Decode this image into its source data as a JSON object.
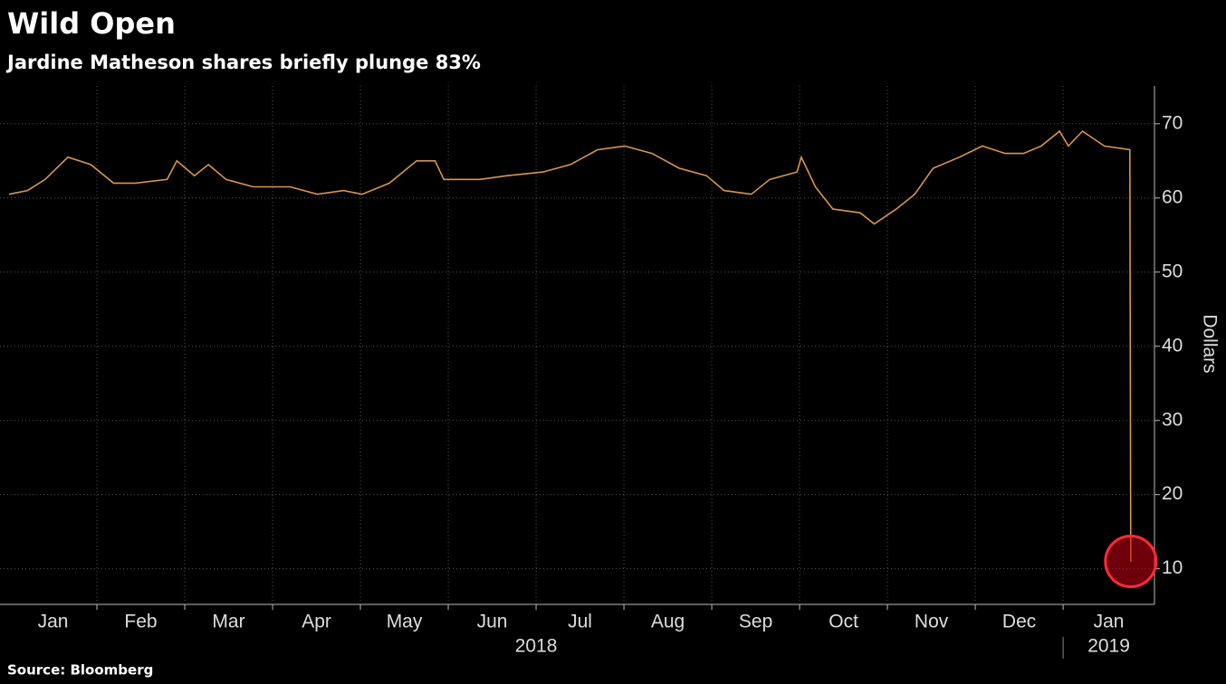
{
  "chart_data": {
    "type": "line",
    "title": "Wild Open",
    "subtitle": "Jardine Matheson shares briefly plunge 83%",
    "source": "Source: Bloomberg",
    "ylabel": "Dollars",
    "x": [
      0,
      0.21,
      0.41,
      0.67,
      0.93,
      1.19,
      1.44,
      1.8,
      1.91,
      2.11,
      2.27,
      2.47,
      2.78,
      3.2,
      3.51,
      3.81,
      4.02,
      4.33,
      4.64,
      4.85,
      4.95,
      5.36,
      5.67,
      6.08,
      6.39,
      6.7,
      7.01,
      7.32,
      7.63,
      7.94,
      8.14,
      8.45,
      8.66,
      8.97,
      9.02,
      9.18,
      9.38,
      9.69,
      9.85,
      10.1,
      10.31,
      10.52,
      10.82,
      11.08,
      11.34,
      11.55,
      11.75,
      11.96,
      12.06,
      12.22,
      12.47,
      12.76,
      12.77
    ],
    "series": [
      {
        "name": "Jardine Matheson",
        "color": "#d9964b",
        "values": [
          60.5,
          61,
          62.5,
          65.5,
          64.5,
          62,
          62,
          62.5,
          65,
          63,
          64.5,
          62.5,
          61.5,
          61.5,
          60.5,
          61,
          60.5,
          62,
          65,
          65,
          62.5,
          62.5,
          63,
          63.5,
          64.5,
          66.5,
          67,
          66,
          64,
          63,
          61,
          60.5,
          62.5,
          63.5,
          65.5,
          61.5,
          58.5,
          58,
          56.5,
          58.5,
          60.5,
          64,
          65.5,
          67,
          66,
          66,
          67,
          69,
          67,
          69,
          67,
          66.5,
          11
        ]
      }
    ],
    "xlim": [
      0,
      13.04
    ],
    "xticks": [
      {
        "value": 0,
        "label": "Jan"
      },
      {
        "value": 1,
        "label": "Feb"
      },
      {
        "value": 2,
        "label": "Mar"
      },
      {
        "value": 3,
        "label": "Apr"
      },
      {
        "value": 4,
        "label": "May"
      },
      {
        "value": 5,
        "label": "Jun"
      },
      {
        "value": 6,
        "label": "Jul"
      },
      {
        "value": 7,
        "label": "Aug"
      },
      {
        "value": 8,
        "label": "Sep"
      },
      {
        "value": 9,
        "label": "Oct"
      },
      {
        "value": 10,
        "label": "Nov"
      },
      {
        "value": 11,
        "label": "Dec"
      },
      {
        "value": 12,
        "label": "Jan"
      }
    ],
    "year_ticks": [
      {
        "value": 0,
        "label": "2018"
      },
      {
        "value": 12,
        "label": "2019"
      }
    ],
    "ylim": [
      5.2,
      75.1
    ],
    "yticks": [
      10,
      20,
      30,
      40,
      50,
      60,
      70
    ],
    "grid": true
  }
}
